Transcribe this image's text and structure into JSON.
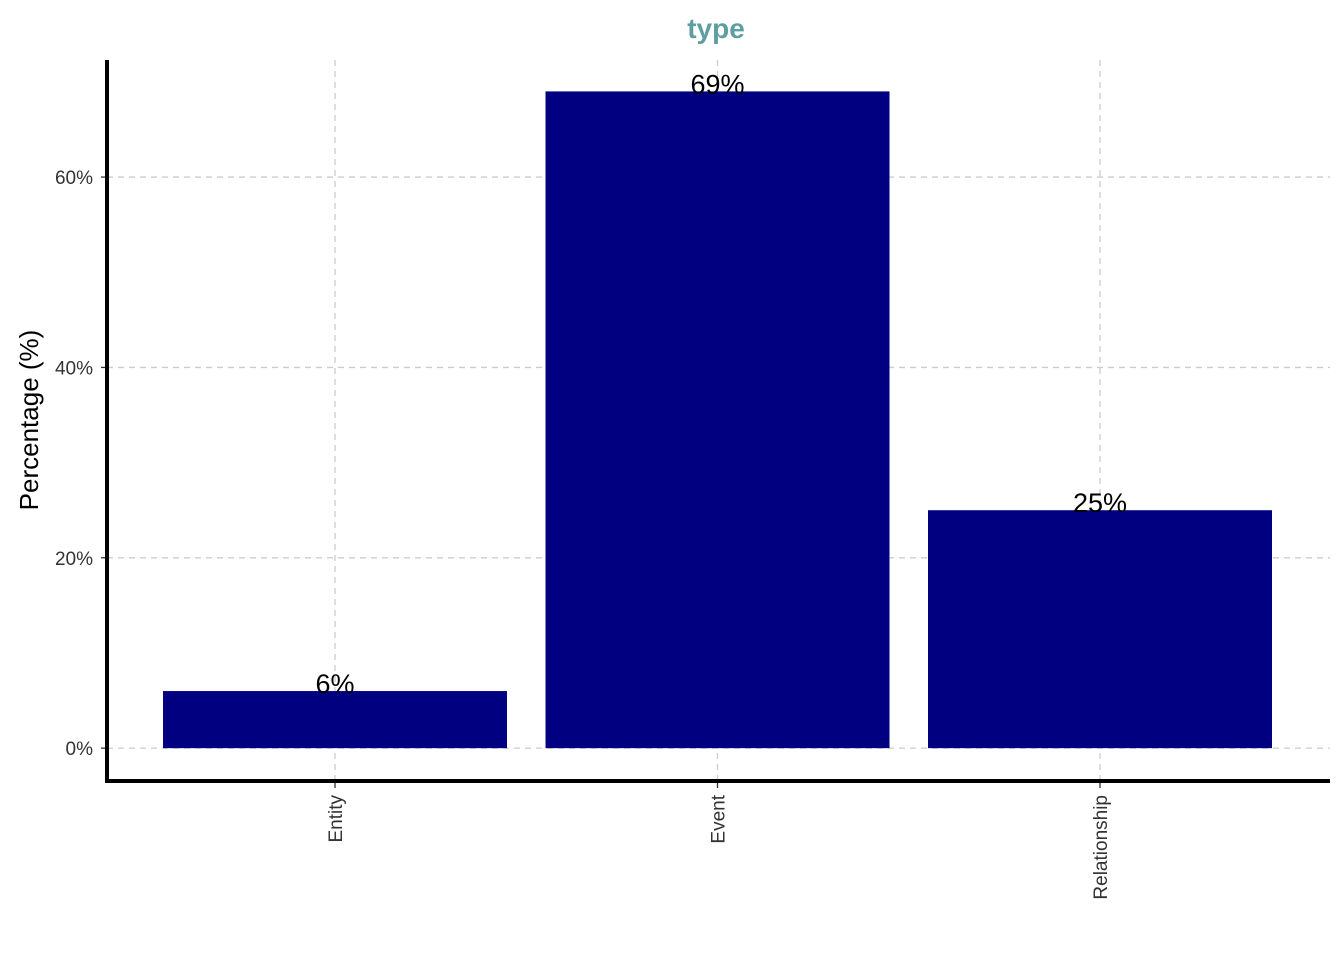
{
  "chart_data": {
    "type": "bar",
    "title": "type",
    "y_label": "Percentage (%)",
    "categories": [
      "Entity",
      "Event",
      "Relationship"
    ],
    "values": [
      6,
      69,
      25
    ],
    "value_labels": [
      "6%",
      "69%",
      "25%"
    ],
    "color": "#000080",
    "ylim": [
      -3.45,
      72.3
    ],
    "yticks": [
      {
        "value": 0,
        "label": "0%"
      },
      {
        "value": 20,
        "label": "20%"
      },
      {
        "value": 40,
        "label": "40%"
      },
      {
        "value": 60,
        "label": "60%"
      }
    ],
    "grid": true
  }
}
